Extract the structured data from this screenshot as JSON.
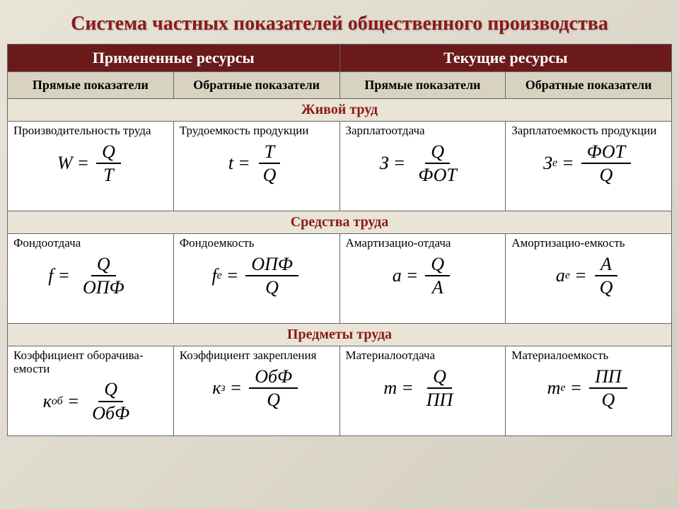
{
  "title": "Система частных показателей общественного производства",
  "colors": {
    "title": "#8b1a1a",
    "header_bg": "#6b1a1a",
    "header_fg": "#ffffff",
    "subheader_bg": "#d8d2c0",
    "section_bg": "#e9e4d6",
    "section_fg": "#8b1a1a",
    "border": "#666666",
    "cell_bg": "#ffffff",
    "page_bg_from": "#e8e4d8",
    "page_bg_to": "#d4cfc0"
  },
  "headers": {
    "applied": "Примененные ресурсы",
    "current": "Текущие ресурсы",
    "direct": "Прямые показатели",
    "inverse": "Обратные показатели"
  },
  "sections": {
    "labor": "Живой труд",
    "means": "Средства труда",
    "objects": "Предметы труда"
  },
  "cells": {
    "r1c1": {
      "label": "Производительность труда",
      "lhs": "W",
      "sub": "",
      "num": "Q",
      "den": "T"
    },
    "r1c2": {
      "label": "Трудоемкость продукции",
      "lhs": "t",
      "sub": "",
      "num": "T",
      "den": "Q"
    },
    "r1c3": {
      "label": "Зарплатоотдача",
      "lhs": "З",
      "sub": "",
      "num": "Q",
      "den": "ФОТ"
    },
    "r1c4": {
      "label": "Зарплатоемкость продукции",
      "lhs": "З",
      "sub": "е",
      "num": "ФОТ",
      "den": "Q"
    },
    "r2c1": {
      "label": "Фондоотдача",
      "lhs": "f",
      "sub": "",
      "num": "Q",
      "den": "ОПФ"
    },
    "r2c2": {
      "label": "Фондоемкость",
      "lhs": "f",
      "sub": "е",
      "num": "ОПФ",
      "den": "Q"
    },
    "r2c3": {
      "label": "Амартизацио-отдача",
      "lhs": "а",
      "sub": "",
      "num": "Q",
      "den": "А"
    },
    "r2c4": {
      "label": "Амортизацио-емкость",
      "lhs": "а",
      "sub": "е",
      "num": "А",
      "den": "Q"
    },
    "r3c1": {
      "label": "Коэффициент оборачива-емости",
      "lhs": "к",
      "sub": "об",
      "num": "Q",
      "den": "ОбФ"
    },
    "r3c2": {
      "label": "Коэффициент закрепления",
      "lhs": "к",
      "sub": "з",
      "num": "ОбФ",
      "den": "Q"
    },
    "r3c3": {
      "label": "Материалоотдача",
      "lhs": "m",
      "sub": "",
      "num": "Q",
      "den": "ПП"
    },
    "r3c4": {
      "label": "Материалоемкость",
      "lhs": "m",
      "sub": "е",
      "num": "ПП",
      "den": "Q"
    }
  }
}
